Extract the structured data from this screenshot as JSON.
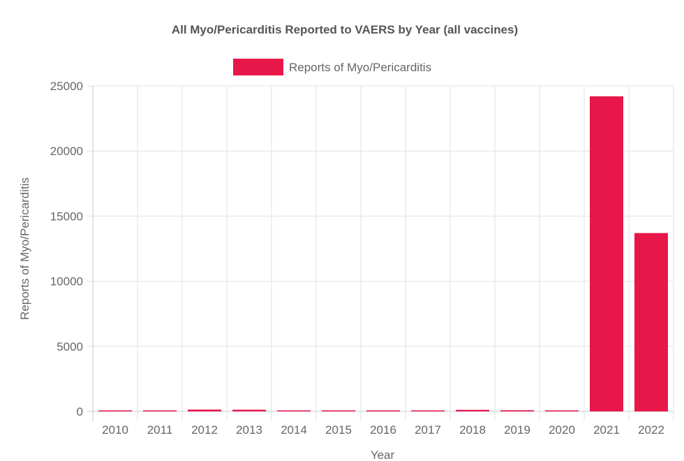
{
  "chart_data": {
    "type": "bar",
    "title": "All Myo/Pericarditis Reported to VAERS by Year (all vaccines)",
    "xlabel": "Year",
    "ylabel": "Reports of Myo/Pericarditis",
    "categories": [
      "2010",
      "2011",
      "2012",
      "2013",
      "2014",
      "2015",
      "2016",
      "2017",
      "2018",
      "2019",
      "2020",
      "2021",
      "2022"
    ],
    "series": [
      {
        "name": "Reports of Myo/Pericarditis",
        "color": "#e8174a",
        "values": [
          60,
          70,
          140,
          130,
          80,
          40,
          60,
          60,
          120,
          90,
          80,
          24200,
          13700
        ]
      }
    ],
    "ylim": [
      0,
      25000
    ],
    "yticks": [
      0,
      5000,
      10000,
      15000,
      20000,
      25000
    ],
    "grid": true,
    "legend_position": "top-center"
  }
}
